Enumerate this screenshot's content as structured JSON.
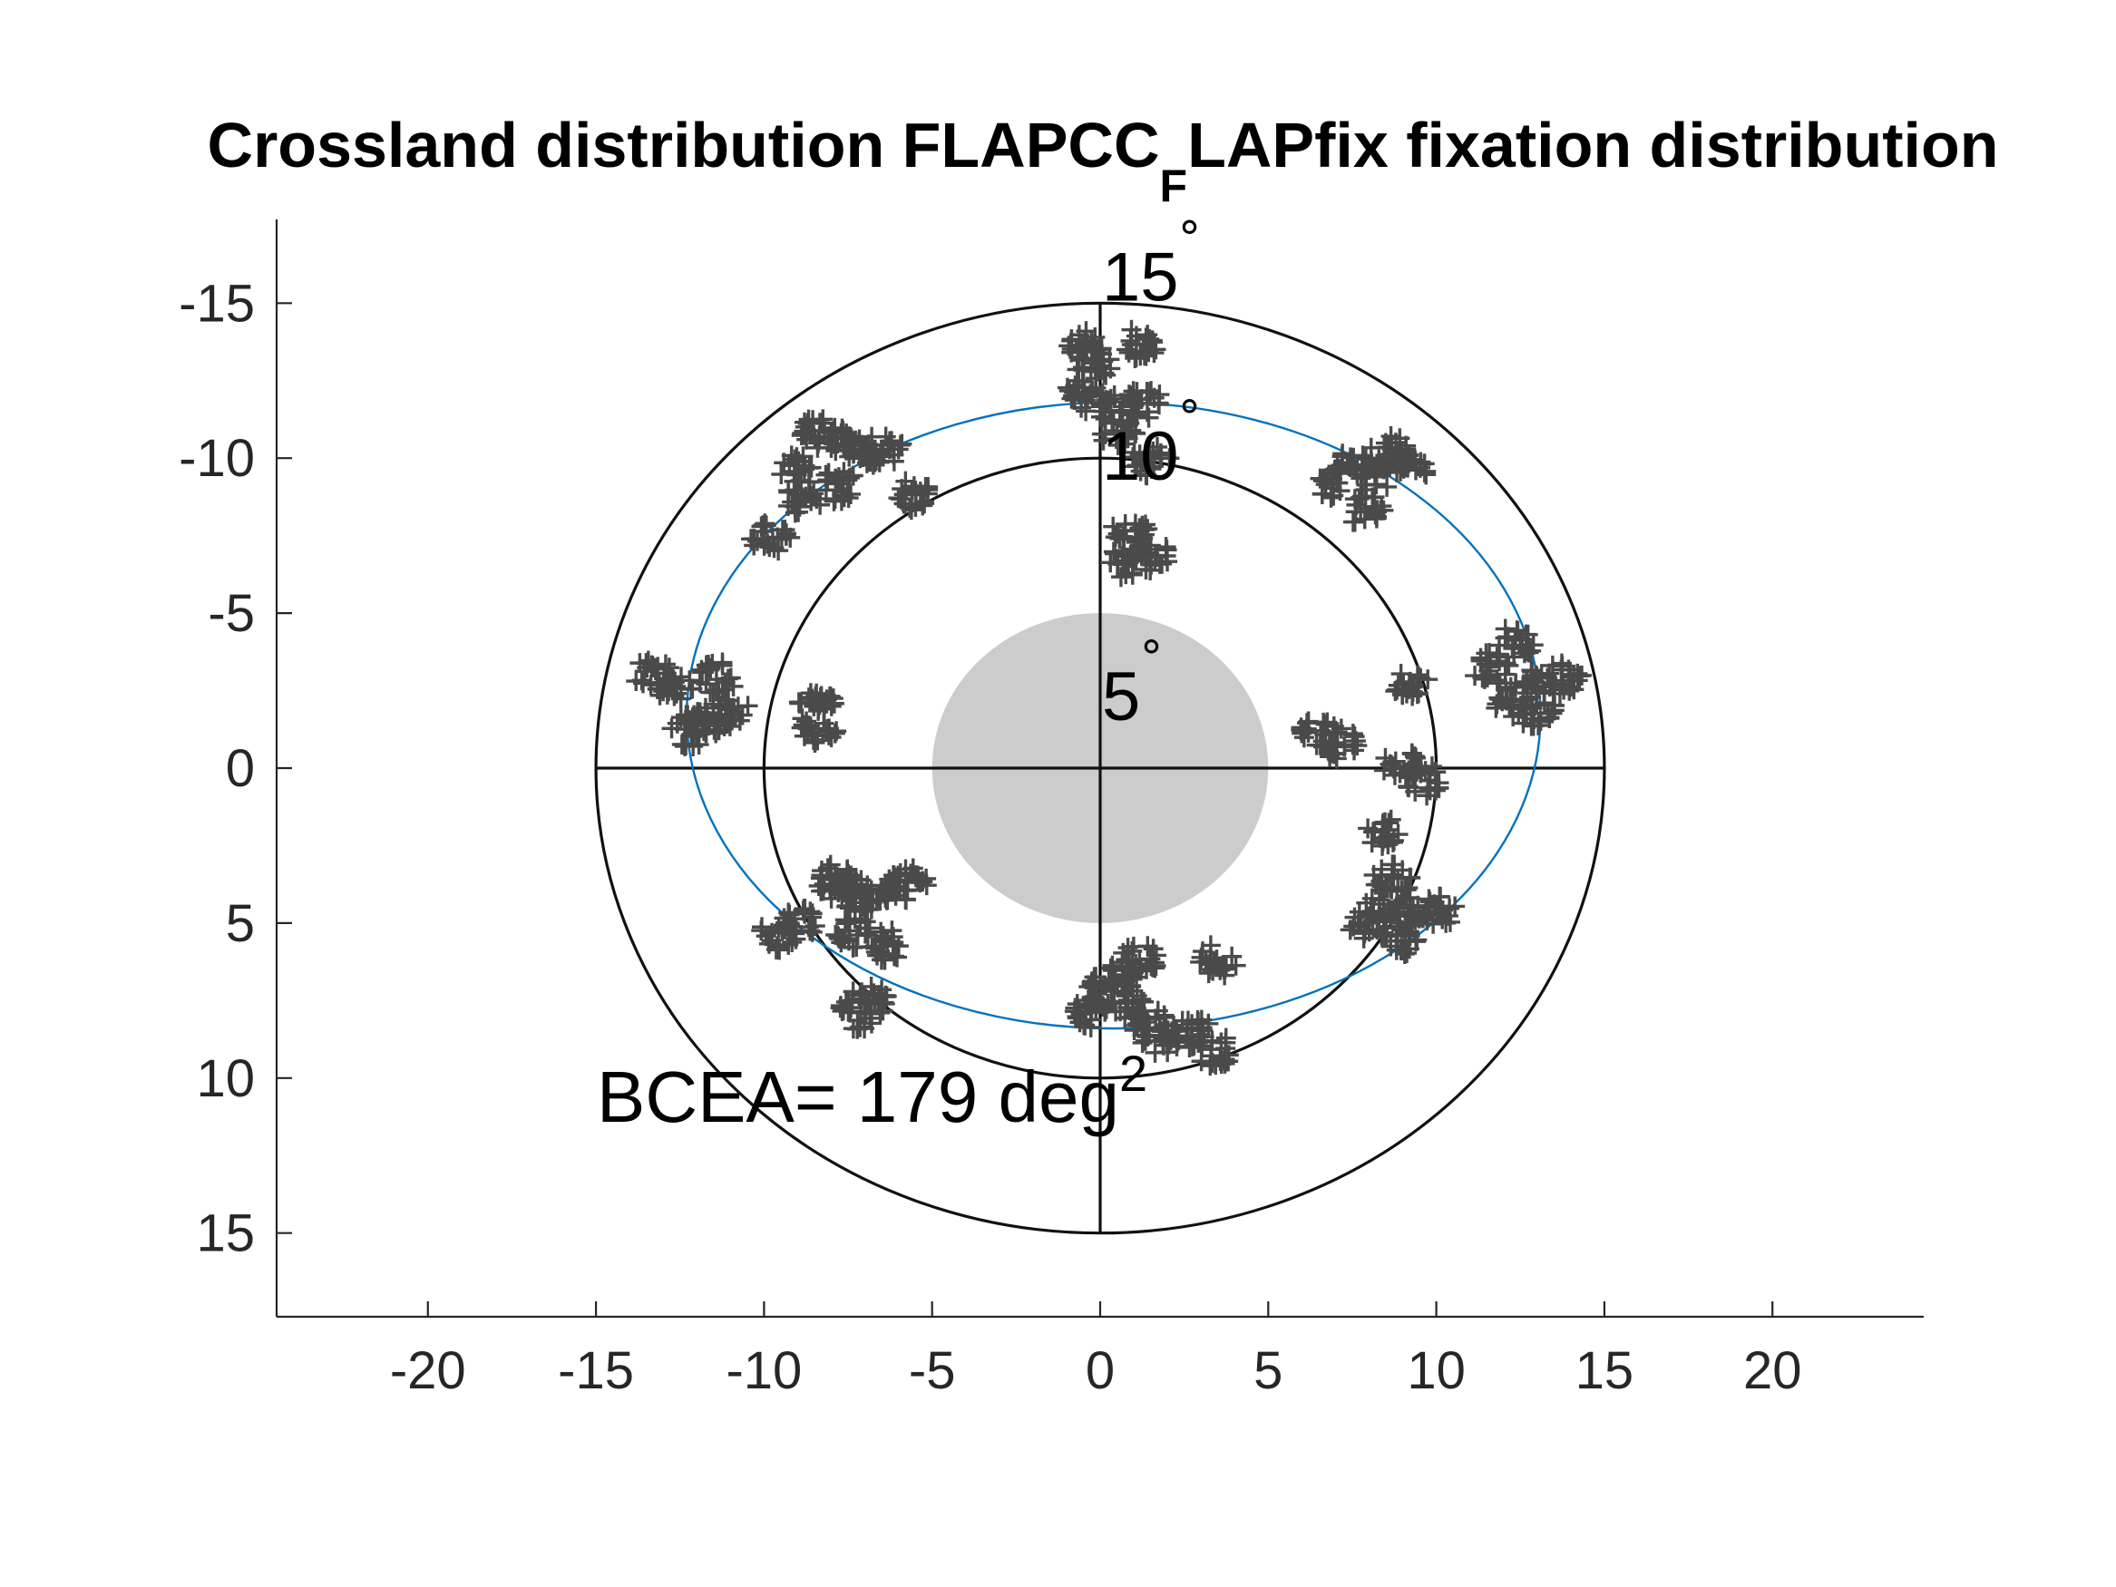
{
  "chart_data": {
    "type": "scatter",
    "title": {
      "part1": "Crossland distribution FLAPCC",
      "subscript": "F",
      "part2": "LAPfix fixation distribution"
    },
    "xlabel": "",
    "ylabel": "",
    "xlim": [
      -24.5,
      24.5
    ],
    "ylim": [
      -17.7,
      17.7
    ],
    "y_reversed": true,
    "grid": false,
    "xticks": [
      -20,
      -15,
      -10,
      -5,
      0,
      5,
      10,
      15,
      20
    ],
    "yticks": [
      -15,
      -10,
      -5,
      0,
      5,
      10,
      15
    ],
    "reference_rings": [
      {
        "radius": 5,
        "label": "5",
        "unit": "°"
      },
      {
        "radius": 10,
        "label": "10",
        "unit": "°"
      },
      {
        "radius": 15,
        "label": "15",
        "unit": "°"
      }
    ],
    "scotoma": {
      "center": [
        0,
        0
      ],
      "radius": 5
    },
    "bcea_ellipse": {
      "center": [
        0.4,
        -1.7
      ],
      "rx": 12.7,
      "ry": 10.1
    },
    "bcea_label": {
      "text": "BCEA= 179 deg",
      "sup": "2"
    },
    "fixation_clusters": [
      {
        "x": -13.3,
        "y": -3.0
      },
      {
        "x": -12.6,
        "y": -2.6
      },
      {
        "x": -11.4,
        "y": -2.9
      },
      {
        "x": -11.8,
        "y": -1.5
      },
      {
        "x": -11.0,
        "y": -1.8
      },
      {
        "x": -12.2,
        "y": -1.2
      },
      {
        "x": -8.4,
        "y": -10.8
      },
      {
        "x": -7.8,
        "y": -10.5
      },
      {
        "x": -7.0,
        "y": -10.3
      },
      {
        "x": -6.4,
        "y": -10.2
      },
      {
        "x": -9.0,
        "y": -9.6
      },
      {
        "x": -8.8,
        "y": -8.7
      },
      {
        "x": -7.8,
        "y": -9.1
      },
      {
        "x": -9.8,
        "y": -7.4
      },
      {
        "x": -5.6,
        "y": -8.8
      },
      {
        "x": -8.4,
        "y": -2.0
      },
      {
        "x": -8.4,
        "y": -1.3
      },
      {
        "x": -0.4,
        "y": -13.6
      },
      {
        "x": 1.2,
        "y": -13.7
      },
      {
        "x": -0.2,
        "y": -13.0
      },
      {
        "x": -0.5,
        "y": -12.0
      },
      {
        "x": 0.5,
        "y": -11.6
      },
      {
        "x": 1.3,
        "y": -11.8
      },
      {
        "x": 0.5,
        "y": -10.9
      },
      {
        "x": 1.5,
        "y": -9.9
      },
      {
        "x": 0.9,
        "y": -7.6
      },
      {
        "x": 1.5,
        "y": -6.9
      },
      {
        "x": 0.8,
        "y": -6.6
      },
      {
        "x": 7.4,
        "y": -9.8
      },
      {
        "x": 8.6,
        "y": -10.2
      },
      {
        "x": 9.3,
        "y": -9.8
      },
      {
        "x": 8.2,
        "y": -9.4
      },
      {
        "x": 7.9,
        "y": -8.3
      },
      {
        "x": 7.0,
        "y": -9.2
      },
      {
        "x": 9.2,
        "y": -2.8
      },
      {
        "x": 12.4,
        "y": -4.1
      },
      {
        "x": 11.6,
        "y": -3.2
      },
      {
        "x": 12.9,
        "y": -2.8
      },
      {
        "x": 13.8,
        "y": -2.9
      },
      {
        "x": 12.3,
        "y": -2.1
      },
      {
        "x": 13.0,
        "y": -1.8
      },
      {
        "x": 6.5,
        "y": -1.1
      },
      {
        "x": 7.1,
        "y": -0.8
      },
      {
        "x": 9.0,
        "y": -0.1
      },
      {
        "x": 9.6,
        "y": 0.4
      },
      {
        "x": 8.4,
        "y": 2.1
      },
      {
        "x": 8.7,
        "y": 3.6
      },
      {
        "x": 8.5,
        "y": 4.4
      },
      {
        "x": 9.2,
        "y": 4.7
      },
      {
        "x": 8.0,
        "y": 5.1
      },
      {
        "x": 8.9,
        "y": 5.5
      },
      {
        "x": 10.0,
        "y": 4.6
      },
      {
        "x": -7.9,
        "y": 3.6
      },
      {
        "x": -7.5,
        "y": 4.0
      },
      {
        "x": -7.1,
        "y": 4.1
      },
      {
        "x": -5.7,
        "y": 3.7
      },
      {
        "x": -6.2,
        "y": 4.0
      },
      {
        "x": -9.0,
        "y": 5.0
      },
      {
        "x": -9.6,
        "y": 5.4
      },
      {
        "x": -7.4,
        "y": 5.3
      },
      {
        "x": -6.3,
        "y": 5.7
      },
      {
        "x": -6.9,
        "y": 7.5
      },
      {
        "x": -7.2,
        "y": 7.9
      },
      {
        "x": 0.1,
        "y": 7.2
      },
      {
        "x": 0.7,
        "y": 6.7
      },
      {
        "x": 1.2,
        "y": 6.2
      },
      {
        "x": 0.9,
        "y": 7.6
      },
      {
        "x": -0.2,
        "y": 7.9
      },
      {
        "x": 1.4,
        "y": 8.2
      },
      {
        "x": 1.8,
        "y": 8.7
      },
      {
        "x": 2.8,
        "y": 8.5
      },
      {
        "x": 3.4,
        "y": 9.1
      },
      {
        "x": 3.5,
        "y": 6.2
      }
    ],
    "stray_points": [
      {
        "x": -5.6,
        "y": -8.8
      },
      {
        "x": 0.5,
        "y": -10.9
      }
    ]
  }
}
